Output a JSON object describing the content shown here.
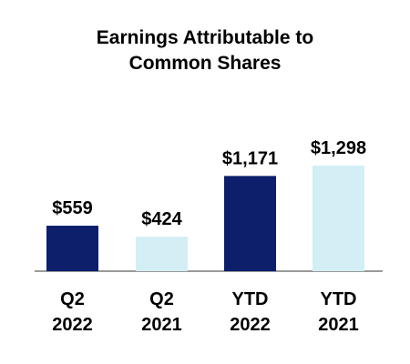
{
  "chart_data": {
    "type": "bar",
    "title_lines": [
      "Earnings Attributable to",
      "Common Shares"
    ],
    "categories": [
      [
        "Q2",
        "2022"
      ],
      [
        "Q2",
        "2021"
      ],
      [
        "YTD",
        "2022"
      ],
      [
        "YTD",
        "2021"
      ]
    ],
    "values": [
      559,
      424,
      1171,
      1298
    ],
    "value_labels": [
      "$559",
      "$424",
      "$1,171",
      "$1,298"
    ],
    "bar_colors": [
      "#0d1f6b",
      "#d3eef5",
      "#0d1f6b",
      "#d3eef5"
    ],
    "baseline_color": "#9a9a9a",
    "ylim": [
      0,
      1500
    ],
    "grid": false,
    "legend": "none",
    "xlabel": "",
    "ylabel": ""
  }
}
